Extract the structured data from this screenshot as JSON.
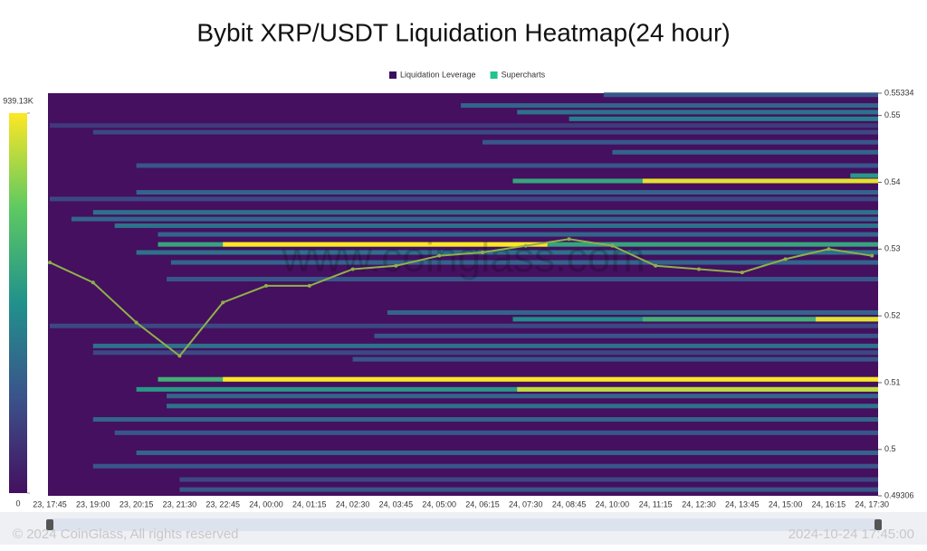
{
  "chart_data": {
    "type": "heatmap",
    "title": "Bybit XRP/USDT Liquidation Heatmap(24 hour)",
    "legend": [
      {
        "name": "Liquidation Leverage",
        "color": "#3b0f5e"
      },
      {
        "name": "Supercharts",
        "color": "#23c28f"
      }
    ],
    "categories": [
      "23, 17:45",
      "23, 19:00",
      "23, 20:15",
      "23, 21:30",
      "23, 22:45",
      "24, 00:00",
      "24, 01:15",
      "24, 02:30",
      "24, 03:45",
      "24, 05:00",
      "24, 06:15",
      "24, 07:30",
      "24, 08:45",
      "24, 10:00",
      "24, 11:15",
      "24, 12:30",
      "24, 13:45",
      "24, 15:00",
      "24, 16:15",
      "24, 17:30"
    ],
    "ylim": [
      0.49306,
      0.55334
    ],
    "yticks": [
      0.55334,
      0.55,
      0.54,
      0.53,
      0.52,
      0.51,
      0.5,
      0.49306
    ],
    "background": "#44105f",
    "colorbar": {
      "clim": [
        0,
        939130
      ],
      "ticks": [
        {
          "value": 939130,
          "label": "939.13K"
        },
        0
      ],
      "colorscale": [
        "#44105f",
        "#3b528b",
        "#21918c",
        "#5ec962",
        "#fde725"
      ]
    },
    "bands": [
      {
        "price": 0.5531,
        "from": 12.8,
        "value": 250000
      },
      {
        "price": 0.5515,
        "from": 9.5,
        "value": 300000
      },
      {
        "price": 0.5505,
        "from": 10.8,
        "value": 350000
      },
      {
        "price": 0.5495,
        "from": 12,
        "value": 400000
      },
      {
        "price": 0.5485,
        "from": 0,
        "value": 150000
      },
      {
        "price": 0.5475,
        "from": 1,
        "value": 200000
      },
      {
        "price": 0.546,
        "from": 10,
        "value": 250000
      },
      {
        "price": 0.5445,
        "from": 13,
        "value": 300000
      },
      {
        "price": 0.5425,
        "from": 2,
        "value": 250000
      },
      {
        "price": 0.541,
        "from": 18.5,
        "value": 500000
      },
      {
        "price": 0.5402,
        "from": 10.7,
        "value": 550000
      },
      {
        "price": 0.5402,
        "from": 13.7,
        "value": 900000
      },
      {
        "price": 0.5385,
        "from": 2,
        "value": 300000
      },
      {
        "price": 0.5375,
        "from": 0,
        "value": 200000
      },
      {
        "price": 0.5355,
        "from": 1,
        "value": 350000
      },
      {
        "price": 0.5345,
        "from": 0.5,
        "value": 300000
      },
      {
        "price": 0.5335,
        "from": 1.5,
        "value": 350000
      },
      {
        "price": 0.5322,
        "from": 2.5,
        "value": 300000
      },
      {
        "price": 0.5307,
        "from": 2.5,
        "value": 550000
      },
      {
        "price": 0.5307,
        "from": 4,
        "to": 11.5,
        "value": 939130
      },
      {
        "price": 0.5295,
        "from": 2,
        "value": 350000
      },
      {
        "price": 0.528,
        "from": 2.8,
        "value": 300000
      },
      {
        "price": 0.5255,
        "from": 2.7,
        "value": 250000
      },
      {
        "price": 0.5205,
        "from": 7.8,
        "value": 300000
      },
      {
        "price": 0.5195,
        "from": 10.7,
        "value": 450000
      },
      {
        "price": 0.5195,
        "from": 13.7,
        "value": 600000
      },
      {
        "price": 0.5195,
        "from": 17.7,
        "value": 900000
      },
      {
        "price": 0.5185,
        "from": 0,
        "value": 200000
      },
      {
        "price": 0.517,
        "from": 7.5,
        "value": 250000
      },
      {
        "price": 0.5155,
        "from": 1,
        "value": 350000
      },
      {
        "price": 0.5145,
        "from": 1,
        "value": 200000
      },
      {
        "price": 0.5135,
        "from": 7,
        "value": 250000
      },
      {
        "price": 0.5105,
        "from": 2.5,
        "value": 600000
      },
      {
        "price": 0.5105,
        "from": 4,
        "value": 939130
      },
      {
        "price": 0.509,
        "from": 2,
        "value": 500000
      },
      {
        "price": 0.509,
        "from": 10.8,
        "value": 850000
      },
      {
        "price": 0.508,
        "from": 2.7,
        "value": 300000
      },
      {
        "price": 0.5065,
        "from": 2.7,
        "value": 350000
      },
      {
        "price": 0.5045,
        "from": 1,
        "value": 300000
      },
      {
        "price": 0.5025,
        "from": 1.5,
        "value": 250000
      },
      {
        "price": 0.4995,
        "from": 2,
        "value": 300000
      },
      {
        "price": 0.4975,
        "from": 1,
        "value": 250000
      },
      {
        "price": 0.4955,
        "from": 3,
        "value": 200000
      },
      {
        "price": 0.494,
        "from": 3,
        "value": 250000
      }
    ],
    "price": {
      "color": "#8fb04a",
      "values": [
        0.528,
        0.525,
        0.519,
        0.514,
        0.522,
        0.5245,
        0.5245,
        0.527,
        0.5275,
        0.529,
        0.5295,
        0.5305,
        0.5315,
        0.5305,
        0.5275,
        0.527,
        0.5265,
        0.5285,
        0.53,
        0.529
      ]
    }
  },
  "watermark": "www.coinglass.com",
  "footer": {
    "copyright": "© 2024 CoinGlass, All rights reserved",
    "timestamp": "2024-10-24 17:45:00"
  }
}
